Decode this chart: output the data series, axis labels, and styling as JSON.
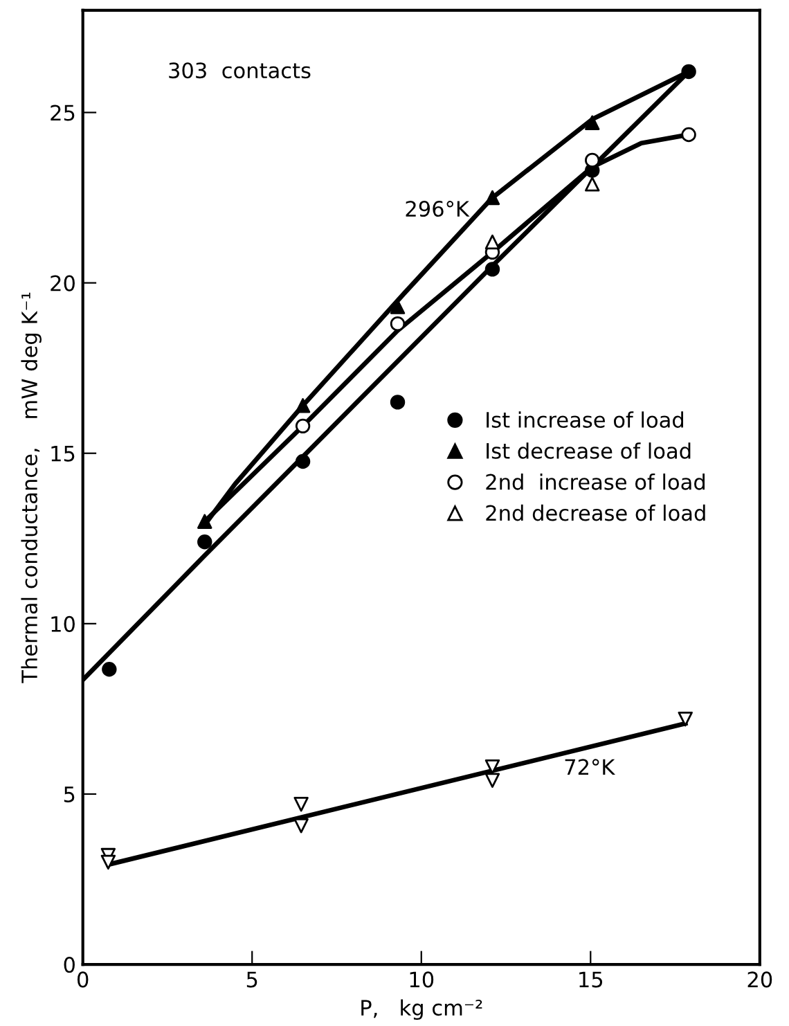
{
  "chart_data": {
    "type": "scatter",
    "xlabel": "P,   kg cm⁻²",
    "ylabel": "Thermal conductance,    mW deg K⁻¹",
    "xlim": [
      0,
      20
    ],
    "ylim": [
      0,
      28
    ],
    "xticks": [
      0,
      5,
      10,
      15,
      20
    ],
    "yticks": [
      0,
      5,
      10,
      15,
      20,
      25
    ],
    "grid": false,
    "legend": "center right",
    "series": [
      {
        "type": "line",
        "color": "#000000",
        "marker": "none",
        "line_style": "solid",
        "x": [
          0,
          3.6,
          5.7,
          12.1,
          14.9,
          17.9
        ],
        "values": [
          8.35,
          12.0,
          14.1,
          20.5,
          23.25,
          26.2
        ]
      },
      {
        "type": "line",
        "color": "#000000",
        "marker": "none",
        "line_style": "solid",
        "x": [
          17.9,
          15.05,
          12.1,
          9.5,
          6.5,
          4.5,
          3.6
        ],
        "values": [
          26.2,
          24.8,
          22.5,
          19.7,
          16.4,
          14.1,
          12.9
        ]
      },
      {
        "type": "line",
        "color": "#000000",
        "marker": "none",
        "line_style": "solid",
        "x": [
          3.6,
          6.5,
          9.3,
          12.1,
          15.05,
          16.5,
          17.9
        ],
        "values": [
          13.0,
          15.8,
          18.6,
          20.9,
          23.4,
          24.1,
          24.35
        ]
      },
      {
        "type": "line",
        "color": "#000000",
        "marker": "none",
        "line_style": "solid",
        "x": [
          0.75,
          17.8
        ],
        "values": [
          2.93,
          7.07
        ]
      },
      {
        "name": "Ist increase of load",
        "color": "#000000",
        "marker": "circle",
        "x": [
          0.78,
          3.6,
          6.5,
          9.3,
          12.1,
          15.05,
          17.9
        ],
        "values": [
          8.66,
          12.4,
          14.76,
          16.5,
          20.4,
          23.3,
          26.2
        ]
      },
      {
        "name": "Ist decrease of load",
        "color": "#000000",
        "marker": "triangle",
        "x": [
          15.05,
          12.1,
          9.3,
          6.5,
          3.6
        ],
        "values": [
          24.7,
          22.5,
          19.3,
          16.4,
          13.0
        ]
      },
      {
        "name": "2nd  increase of load",
        "color": "#000000",
        "marker": "circle_open",
        "x": [
          6.5,
          9.3,
          12.1,
          15.05,
          17.9
        ],
        "values": [
          15.8,
          18.8,
          20.9,
          23.6,
          24.35
        ]
      },
      {
        "name": "2nd decrease of load",
        "color": "#000000",
        "marker": "triangle_open",
        "x": [
          15.05,
          12.1
        ],
        "values": [
          22.9,
          21.2
        ]
      },
      {
        "color": "#000000",
        "marker": "triangle_down_open",
        "x": [
          0.75,
          0.75,
          6.45,
          6.45,
          12.1,
          12.1,
          17.8
        ],
        "values": [
          3.2,
          3.0,
          4.7,
          4.07,
          5.8,
          5.4,
          7.2
        ]
      }
    ],
    "annotations": [
      "303  contacts",
      "296°K",
      "72°K"
    ]
  }
}
